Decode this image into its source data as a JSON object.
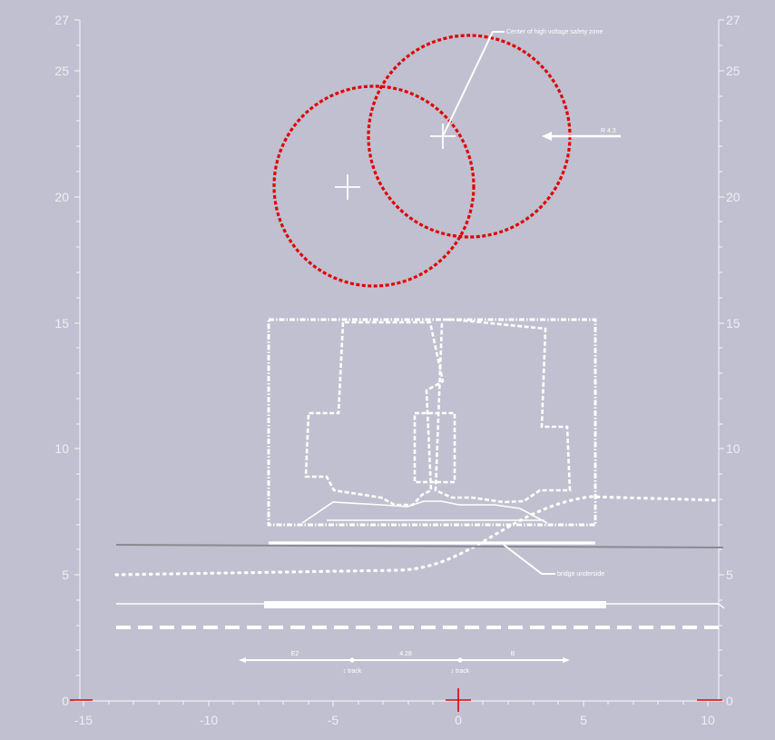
{
  "axes": {
    "y_ticks": [
      "0",
      "5",
      "10",
      "15",
      "20",
      "25",
      "27"
    ],
    "x_ticks": [
      "-15",
      "-10",
      "-5",
      "0",
      "5",
      "10"
    ]
  },
  "annotations": {
    "hv_center": "Center of high voltage safety zone",
    "radius": "R 4.3",
    "bridge": "bridge underside",
    "dim_left": "E2",
    "dim_mid": "4.28",
    "dim_right": "B",
    "track_left": "↕ track",
    "track_right": "↕ track"
  },
  "colors": {
    "background": "#c0c0d0",
    "hv_zone": "#e00000",
    "lines": "#ffffff",
    "origin_marker": "#e00000"
  }
}
